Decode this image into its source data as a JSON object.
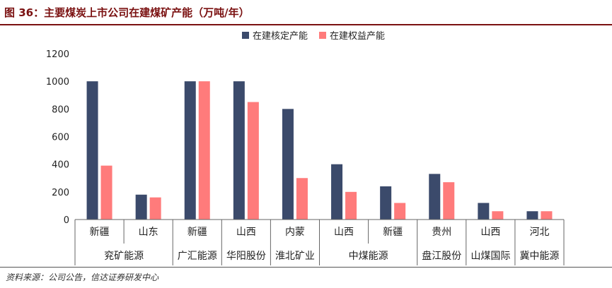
{
  "header": {
    "title": "图 36：主要煤炭上市公司在建煤矿产能（万吨/年）"
  },
  "footer": {
    "source": "资料来源：公司公告，信达证券研发中心"
  },
  "chart_data": {
    "type": "bar",
    "title": "",
    "xlabel": "",
    "ylabel": "",
    "ylim": [
      0,
      1200
    ],
    "yticks": [
      0,
      200,
      400,
      600,
      800,
      1000,
      1200
    ],
    "legend_position": "top",
    "categories": [
      "新疆",
      "山东",
      "新疆",
      "山西",
      "内蒙",
      "山西",
      "新疆",
      "贵州",
      "山西",
      "河北"
    ],
    "groups": [
      {
        "label": "兖矿能源",
        "categories": [
          "新疆",
          "山东"
        ]
      },
      {
        "label": "广汇能源",
        "categories": [
          "新疆"
        ]
      },
      {
        "label": "华阳股份",
        "categories": [
          "山西"
        ]
      },
      {
        "label": "淮北矿业",
        "categories": [
          "内蒙"
        ]
      },
      {
        "label": "中煤能源",
        "categories": [
          "山西",
          "新疆"
        ]
      },
      {
        "label": "盘江股份",
        "categories": [
          "贵州"
        ]
      },
      {
        "label": "山煤国际",
        "categories": [
          "山西"
        ]
      },
      {
        "label": "冀中能源",
        "categories": [
          "河北"
        ]
      }
    ],
    "series": [
      {
        "name": "在建核定产能",
        "color": "#3b4a6b",
        "values": [
          1000,
          180,
          1000,
          1000,
          800,
          400,
          240,
          330,
          120,
          60
        ]
      },
      {
        "name": "在建权益产能",
        "color": "#ff7b7b",
        "values": [
          390,
          160,
          1000,
          850,
          300,
          200,
          120,
          270,
          60,
          60
        ]
      }
    ]
  }
}
